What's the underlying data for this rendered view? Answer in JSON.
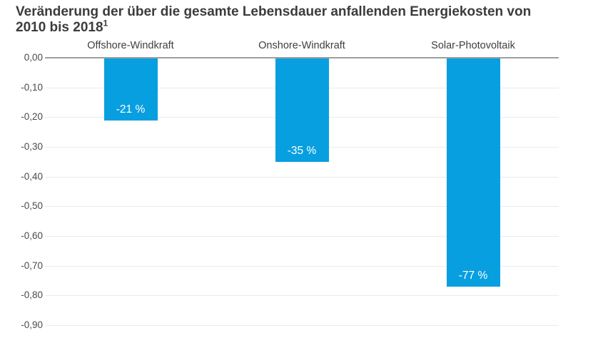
{
  "title": {
    "line1": "Veränderung der über die gesamte Lebensdauer anfallenden Energiekosten von",
    "line2": "2010 bis 2018",
    "superscript": "1"
  },
  "chart_data": {
    "type": "bar",
    "title": "Veränderung der über die gesamte Lebensdauer anfallenden Energiekosten von 2010 bis 2018¹",
    "categories": [
      "Offshore-Windkraft",
      "Onshore-Windkraft",
      "Solar-Photovoltaik"
    ],
    "values": [
      -0.21,
      -0.35,
      -0.77
    ],
    "bar_labels": [
      "-21 %",
      "-35 %",
      "-77 %"
    ],
    "yticks": [
      0,
      -0.1,
      -0.2,
      -0.3,
      -0.4,
      -0.5,
      -0.6,
      -0.7,
      -0.8,
      -0.9
    ],
    "ytick_labels": [
      "0,00",
      "-0,10",
      "-0,20",
      "-0,30",
      "-0,40",
      "-0,50",
      "-0,60",
      "-0,70",
      "-0,80",
      "-0,90"
    ],
    "ylim": [
      -0.9,
      0
    ],
    "xlabel": "",
    "ylabel": "",
    "grid": true,
    "legend": "none",
    "colors": {
      "bar": "#089fe0",
      "bar_label": "#ffffff",
      "zero_line": "#9e9e9e",
      "gridline": "#ebebeb",
      "axis_text": "#4a4a4a",
      "header_text": "#3f3f3f",
      "title_text": "#3c3c3c",
      "background": "#ffffff"
    }
  }
}
